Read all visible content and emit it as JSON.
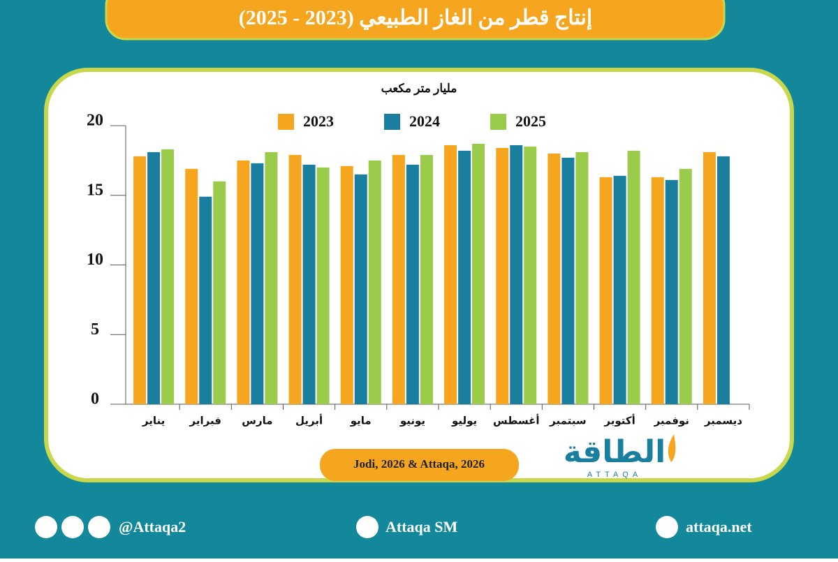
{
  "chart_data": {
    "type": "bar",
    "title": "إنتاج قطر من الغاز الطبيعي (2023 - 2025)",
    "y_label": "مليار متر مكعب",
    "source": "Jodi, 2026 & Attaqa, 2026",
    "categories": [
      "يناير",
      "فبراير",
      "مارس",
      "أبريل",
      "مايو",
      "يونيو",
      "يوليو",
      "أغسطس",
      "سبتمبر",
      "أكتوبر",
      "نوفمبر",
      "ديسمبر"
    ],
    "series": [
      {
        "name": "2023",
        "color": "#f6a51f",
        "values": [
          17.8,
          16.9,
          17.5,
          17.9,
          17.1,
          17.9,
          18.6,
          18.4,
          18.0,
          16.3,
          16.3,
          18.1
        ]
      },
      {
        "name": "2024",
        "color": "#1a7f9e",
        "values": [
          18.1,
          14.9,
          17.3,
          17.2,
          16.5,
          17.2,
          18.2,
          18.6,
          17.7,
          16.4,
          16.1,
          17.8
        ]
      },
      {
        "name": "2025",
        "color": "#9bcb4b",
        "values": [
          18.3,
          16.0,
          18.1,
          17.0,
          17.5,
          17.9,
          18.7,
          18.5,
          18.1,
          18.2,
          16.9,
          null
        ]
      }
    ],
    "ylim": [
      0,
      20
    ],
    "yticks": [
      0,
      5,
      10,
      15,
      20
    ],
    "grid": false
  },
  "logo": {
    "arabic": "الطاقة",
    "latin": "ATTAQA"
  },
  "footer": {
    "social": "@Attaqa2",
    "youtube": "Attaqa SM",
    "website": "attaqa.net"
  }
}
